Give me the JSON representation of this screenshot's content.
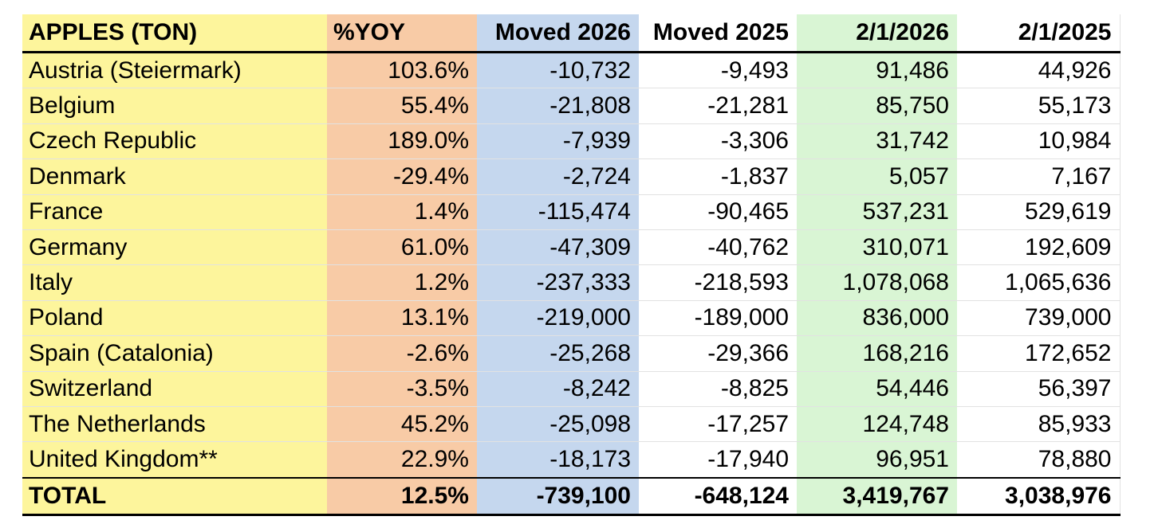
{
  "table": {
    "headers": [
      "APPLES (TON)",
      "%YOY",
      "Moved 2026",
      "Moved 2025",
      "2/1/2026",
      "2/1/2025"
    ],
    "rows": [
      {
        "country": "Austria (Steiermark)",
        "yoy": "103.6%",
        "moved_2026": "-10,732",
        "moved_2025": "-9,493",
        "stock_2026": "91,486",
        "stock_2025": "44,926"
      },
      {
        "country": "Belgium",
        "yoy": "55.4%",
        "moved_2026": "-21,808",
        "moved_2025": "-21,281",
        "stock_2026": "85,750",
        "stock_2025": "55,173"
      },
      {
        "country": "Czech Republic",
        "yoy": "189.0%",
        "moved_2026": "-7,939",
        "moved_2025": "-3,306",
        "stock_2026": "31,742",
        "stock_2025": "10,984"
      },
      {
        "country": "Denmark",
        "yoy": "-29.4%",
        "moved_2026": "-2,724",
        "moved_2025": "-1,837",
        "stock_2026": "5,057",
        "stock_2025": "7,167"
      },
      {
        "country": "France",
        "yoy": "1.4%",
        "moved_2026": "-115,474",
        "moved_2025": "-90,465",
        "stock_2026": "537,231",
        "stock_2025": "529,619"
      },
      {
        "country": "Germany",
        "yoy": "61.0%",
        "moved_2026": "-47,309",
        "moved_2025": "-40,762",
        "stock_2026": "310,071",
        "stock_2025": "192,609"
      },
      {
        "country": "Italy",
        "yoy": "1.2%",
        "moved_2026": "-237,333",
        "moved_2025": "-218,593",
        "stock_2026": "1,078,068",
        "stock_2025": "1,065,636"
      },
      {
        "country": "Poland",
        "yoy": "13.1%",
        "moved_2026": "-219,000",
        "moved_2025": "-189,000",
        "stock_2026": "836,000",
        "stock_2025": "739,000"
      },
      {
        "country": "Spain (Catalonia)",
        "yoy": "-2.6%",
        "moved_2026": "-25,268",
        "moved_2025": "-29,366",
        "stock_2026": "168,216",
        "stock_2025": "172,652"
      },
      {
        "country": "Switzerland",
        "yoy": "-3.5%",
        "moved_2026": "-8,242",
        "moved_2025": "-8,825",
        "stock_2026": "54,446",
        "stock_2025": "56,397"
      },
      {
        "country": "The Netherlands",
        "yoy": "45.2%",
        "moved_2026": "-25,098",
        "moved_2025": "-17,257",
        "stock_2026": "124,748",
        "stock_2025": "85,933"
      },
      {
        "country": "United Kingdom**",
        "yoy": "22.9%",
        "moved_2026": "-18,173",
        "moved_2025": "-17,940",
        "stock_2026": "96,951",
        "stock_2025": "78,880"
      }
    ],
    "total": {
      "country": "TOTAL",
      "yoy": "12.5%",
      "moved_2026": "-739,100",
      "moved_2025": "-648,124",
      "stock_2026": "3,419,767",
      "stock_2025": "3,038,976"
    }
  },
  "colors": {
    "country_column": "#fdf59c",
    "yoy_column": "#f8cba6",
    "moved_2026_column": "#c5d7ee",
    "stock_2026_column": "#d9f5d4"
  }
}
